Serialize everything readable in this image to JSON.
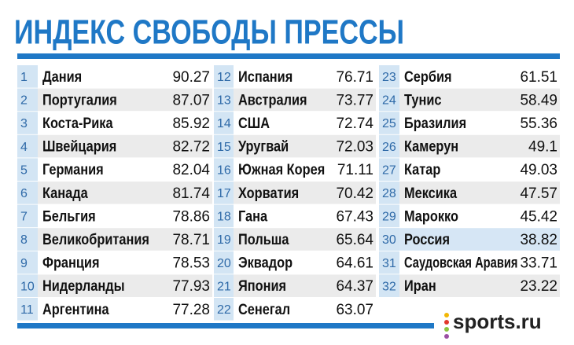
{
  "title": "ИНДЕКС СВОБОДЫ ПРЕССЫ",
  "columns": [
    [
      {
        "rank": "1",
        "name": "Дания",
        "score": "90.27"
      },
      {
        "rank": "2",
        "name": "Португалия",
        "score": "87.07"
      },
      {
        "rank": "3",
        "name": "Коста-Рика",
        "score": "85.92"
      },
      {
        "rank": "4",
        "name": "Швейцария",
        "score": "82.72"
      },
      {
        "rank": "5",
        "name": "Германия",
        "score": "82.04"
      },
      {
        "rank": "6",
        "name": "Канада",
        "score": "81.74"
      },
      {
        "rank": "7",
        "name": "Бельгия",
        "score": "78.86"
      },
      {
        "rank": "8",
        "name": "Великобритания",
        "score": "78.71"
      },
      {
        "rank": "9",
        "name": "Франция",
        "score": "78.53"
      },
      {
        "rank": "10",
        "name": "Нидерланды",
        "score": "77.93"
      },
      {
        "rank": "11",
        "name": "Аргентина",
        "score": "77.28"
      }
    ],
    [
      {
        "rank": "12",
        "name": "Испания",
        "score": "76.71"
      },
      {
        "rank": "13",
        "name": "Австралия",
        "score": "73.77"
      },
      {
        "rank": "14",
        "name": "США",
        "score": "72.74"
      },
      {
        "rank": "15",
        "name": "Уругвай",
        "score": "72.03"
      },
      {
        "rank": "16",
        "name": "Южная Корея",
        "score": "71.11"
      },
      {
        "rank": "17",
        "name": "Хорватия",
        "score": "70.42"
      },
      {
        "rank": "18",
        "name": "Гана",
        "score": "67.43"
      },
      {
        "rank": "19",
        "name": "Польша",
        "score": "65.64"
      },
      {
        "rank": "20",
        "name": "Эквадор",
        "score": "64.61"
      },
      {
        "rank": "21",
        "name": "Япония",
        "score": "64.37"
      },
      {
        "rank": "22",
        "name": "Сенегал",
        "score": "63.07"
      }
    ],
    [
      {
        "rank": "23",
        "name": "Сербия",
        "score": "61.51"
      },
      {
        "rank": "24",
        "name": "Тунис",
        "score": "58.49"
      },
      {
        "rank": "25",
        "name": "Бразилия",
        "score": "55.36"
      },
      {
        "rank": "26",
        "name": "Камерун",
        "score": "49.1"
      },
      {
        "rank": "27",
        "name": "Катар",
        "score": "49.03"
      },
      {
        "rank": "28",
        "name": "Мексика",
        "score": "47.57"
      },
      {
        "rank": "29",
        "name": "Марокко",
        "score": "45.42"
      },
      {
        "rank": "30",
        "name": "Россия",
        "score": "38.82",
        "highlight": true
      },
      {
        "rank": "31",
        "name": "Саудовская Аравия",
        "score": "33.71"
      },
      {
        "rank": "32",
        "name": "Иран",
        "score": "23.22"
      }
    ]
  ],
  "logo": "sports.ru"
}
